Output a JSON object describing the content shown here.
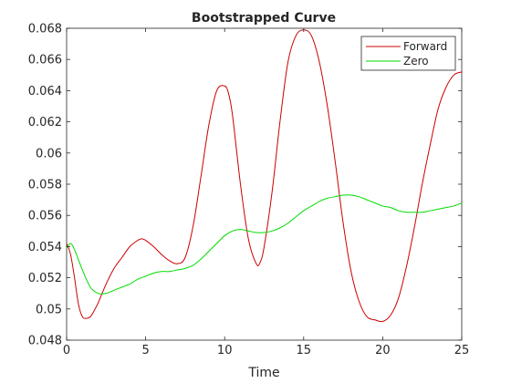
{
  "chart_data": {
    "type": "line",
    "title": "Bootstrapped Curve",
    "xlabel": "Time",
    "ylabel": "",
    "xlim": [
      0,
      25
    ],
    "ylim": [
      0.048,
      0.068
    ],
    "xticks": [
      0,
      5,
      10,
      15,
      20,
      25
    ],
    "xtick_labels": [
      "0",
      "5",
      "10",
      "15",
      "20",
      "25"
    ],
    "yticks": [
      0.048,
      0.05,
      0.052,
      0.054,
      0.056,
      0.058,
      0.06,
      0.062,
      0.064,
      0.066,
      0.068
    ],
    "ytick_labels": [
      "0.048",
      "0.05",
      "0.052",
      "0.054",
      "0.056",
      "0.058",
      "0.06",
      "0.062",
      "0.064",
      "0.066",
      "0.068"
    ],
    "grid": false,
    "legend_position": "top-right",
    "series": [
      {
        "name": "Forward",
        "color": "#cc0000",
        "x": [
          0,
          0.25,
          0.5,
          0.75,
          1,
          1.25,
          1.5,
          1.75,
          2,
          2.5,
          3,
          3.5,
          4,
          4.5,
          4.75,
          5,
          5.5,
          6,
          6.5,
          7,
          7.5,
          8,
          8.5,
          9,
          9.5,
          10,
          10.25,
          10.5,
          11,
          11.5,
          12,
          12.25,
          12.5,
          13,
          13.5,
          14,
          14.5,
          15,
          15.5,
          16,
          16.5,
          17,
          17.5,
          18,
          18.5,
          19,
          19.5,
          20,
          20.5,
          21,
          21.5,
          22,
          22.5,
          23,
          23.5,
          24,
          24.5,
          25
        ],
        "y": [
          0.0542,
          0.0535,
          0.052,
          0.0503,
          0.0495,
          0.0494,
          0.0495,
          0.0499,
          0.0504,
          0.0516,
          0.0526,
          0.0533,
          0.054,
          0.0544,
          0.0545,
          0.0544,
          0.054,
          0.0535,
          0.0531,
          0.0529,
          0.0533,
          0.0553,
          0.0585,
          0.0618,
          0.064,
          0.0643,
          0.0638,
          0.0624,
          0.058,
          0.0545,
          0.0529,
          0.053,
          0.054,
          0.0575,
          0.062,
          0.0658,
          0.0675,
          0.0679,
          0.0675,
          0.0658,
          0.063,
          0.0594,
          0.0555,
          0.0524,
          0.0505,
          0.0495,
          0.0493,
          0.0492,
          0.0496,
          0.0507,
          0.0527,
          0.0552,
          0.058,
          0.0605,
          0.0628,
          0.0642,
          0.065,
          0.0652
        ]
      },
      {
        "name": "Zero",
        "color": "#00dd00",
        "x": [
          0,
          0.25,
          0.5,
          1,
          1.5,
          2,
          2.5,
          3,
          3.5,
          4,
          4.5,
          5,
          5.5,
          6,
          6.5,
          7,
          7.5,
          8,
          8.5,
          9,
          9.5,
          10,
          10.5,
          11,
          11.5,
          12,
          12.5,
          13,
          13.5,
          14,
          14.5,
          15,
          15.5,
          16,
          16.5,
          17,
          17.5,
          18,
          18.5,
          19,
          19.5,
          20,
          20.5,
          21,
          21.5,
          22,
          22.5,
          23,
          23.5,
          24,
          24.5,
          25
        ],
        "y": [
          0.0539,
          0.0542,
          0.0538,
          0.0525,
          0.0514,
          0.051,
          0.051,
          0.0512,
          0.0514,
          0.0516,
          0.0519,
          0.0521,
          0.0523,
          0.0524,
          0.0524,
          0.0525,
          0.0526,
          0.0528,
          0.0532,
          0.0537,
          0.0542,
          0.0547,
          0.055,
          0.0551,
          0.055,
          0.0549,
          0.0549,
          0.055,
          0.0552,
          0.0555,
          0.0559,
          0.0563,
          0.0566,
          0.0569,
          0.0571,
          0.0572,
          0.0573,
          0.0573,
          0.0572,
          0.057,
          0.0568,
          0.0566,
          0.0565,
          0.0563,
          0.0562,
          0.0562,
          0.0562,
          0.0563,
          0.0564,
          0.0565,
          0.0566,
          0.0568
        ]
      }
    ]
  }
}
